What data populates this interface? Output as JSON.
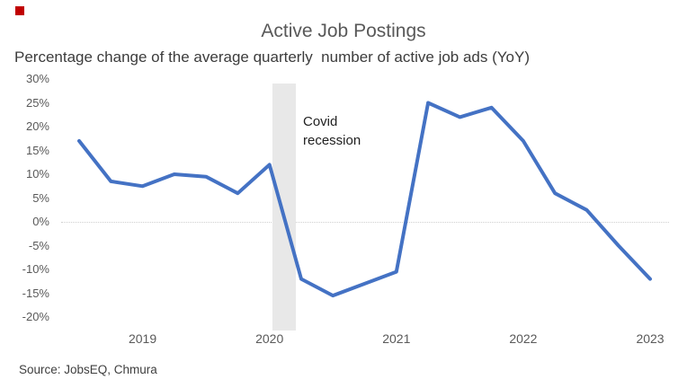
{
  "theme": {
    "background": "#FFFFFF",
    "accent_line": "#4472C4",
    "band": "#E8E8E8",
    "gridline": "#CFCFCF",
    "title_text": "#595959",
    "subtitle_text": "#3C3C3C",
    "axis_text": "#595959",
    "annotation_text": "#1F1F1F",
    "source_text": "#3F3F3F",
    "marker_red": "#C00000"
  },
  "source": "Source: JobsEQ, Chmura",
  "chart_data": {
    "type": "line",
    "title": "Active Job Postings",
    "subtitle": "Percentage change of the average quarterly  number of active job ads (YoY)",
    "x": [
      "2018 Q3",
      "2018 Q4",
      "2019 Q1",
      "2019 Q2",
      "2019 Q3",
      "2019 Q4",
      "2020 Q1",
      "2020 Q2",
      "2020 Q3",
      "2020 Q4",
      "2021 Q1",
      "2021 Q2",
      "2021 Q3",
      "2021 Q4",
      "2022 Q1",
      "2022 Q2",
      "2022 Q3",
      "2022 Q4",
      "2023 Q1"
    ],
    "values": [
      17,
      8.5,
      7.5,
      10,
      9.5,
      6,
      12,
      -12,
      -15.5,
      -13,
      -10.5,
      25,
      22,
      24,
      17,
      6,
      2.5,
      -5,
      -12
    ],
    "xlabel": "",
    "ylabel": "",
    "ylim": [
      -20,
      30
    ],
    "grid": "horizontal line at 0% only",
    "legend": "none",
    "y_axis": {
      "max": 30,
      "min": -20,
      "step": 5,
      "tick_labels": [
        "30%",
        "25%",
        "20%",
        "15%",
        "10%",
        "5%",
        "0%",
        "-5%",
        "-10%",
        "-15%",
        "-20%"
      ]
    },
    "x_axis": {
      "ticks": [
        {
          "label": "2019",
          "index": 2
        },
        {
          "label": "2020",
          "index": 6
        },
        {
          "label": "2021",
          "index": 10
        },
        {
          "label": "2022",
          "index": 14
        },
        {
          "label": "2023",
          "index": 18
        }
      ]
    },
    "annotation": {
      "label": "Covid recession",
      "lines": [
        "Covid",
        "recession"
      ],
      "band_span": [
        "2020 Q1",
        "2020 Q2"
      ]
    }
  }
}
